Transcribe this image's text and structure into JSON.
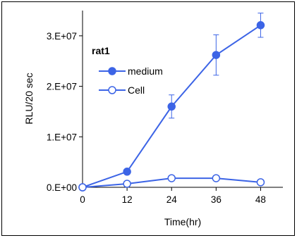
{
  "chart_data": {
    "type": "line",
    "title": "",
    "xlabel": "Time(hr)",
    "ylabel": "RLU/20 sec",
    "x": [
      0,
      12,
      24,
      36,
      48
    ],
    "x_tick_labels": [
      "0",
      "12",
      "24",
      "36",
      "48"
    ],
    "xlim": [
      0,
      54
    ],
    "ylim": [
      0,
      35000000
    ],
    "y_ticks": [
      0,
      10000000,
      20000000,
      30000000
    ],
    "y_tick_labels": [
      "0.E+00",
      "1.E+07",
      "2.E+07",
      "3.E+07"
    ],
    "grid": false,
    "legend": {
      "title": "rat1",
      "placement": "top-left"
    },
    "series": [
      {
        "name": "medium",
        "marker": "filled-circle",
        "color": "#3c64e6",
        "values": [
          0,
          3100000,
          16000000,
          26200000,
          32100000
        ],
        "errors": [
          0,
          0,
          2300000,
          4000000,
          2400000
        ]
      },
      {
        "name": "Cell",
        "marker": "open-circle",
        "color": "#3c64e6",
        "values": [
          0,
          700000,
          1800000,
          1800000,
          1000000
        ],
        "errors": [
          0,
          0,
          0,
          0,
          0
        ]
      }
    ]
  }
}
